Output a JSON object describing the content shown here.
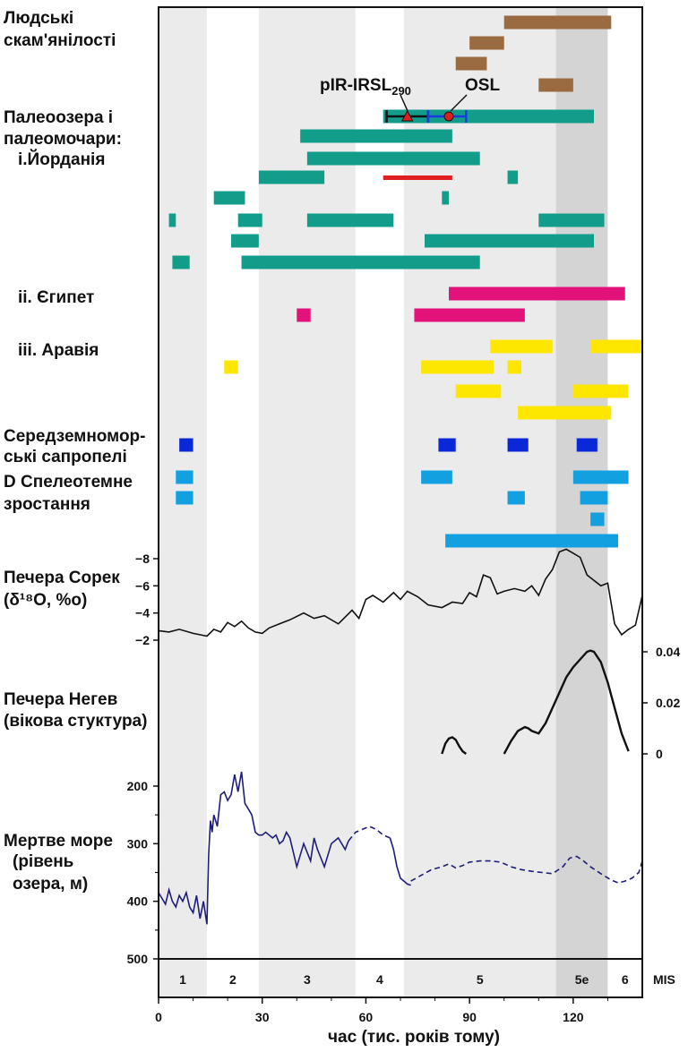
{
  "chart_data": {
    "type": "composite-timeline",
    "xlabel": "час (тис. років тому)",
    "xlim": [
      0,
      140
    ],
    "xticks": [
      0,
      30,
      60,
      90,
      120
    ],
    "mis": {
      "label": "MIS",
      "stages": [
        {
          "label": "1",
          "x0": 0,
          "x1": 14,
          "shade": "#ebebeb"
        },
        {
          "label": "2",
          "x0": 14,
          "x1": 29,
          "shade": "#ffffff"
        },
        {
          "label": "3",
          "x0": 29,
          "x1": 57,
          "shade": "#ebebeb"
        },
        {
          "label": "4",
          "x0": 57,
          "x1": 71,
          "shade": "#ffffff"
        },
        {
          "label": "5",
          "x0": 71,
          "x1": 115,
          "shade": "#ebebeb"
        },
        {
          "label": "5e",
          "x0": 115,
          "x1": 130,
          "shade": "#d4d4d4"
        },
        {
          "label": "6",
          "x0": 130,
          "x1": 140,
          "shade": "#ffffff"
        }
      ]
    },
    "sections": [
      {
        "label": "Людські скам'янілості"
      },
      {
        "label": "Палеоозера і палеомочари:"
      },
      {
        "label": "і.Йорданія"
      },
      {
        "label": "ii. Єгипет"
      },
      {
        "label": "iii. Аравія"
      },
      {
        "label": "Середземномор-ські сапропелі"
      },
      {
        "label": "D Спелеотемне зростання"
      },
      {
        "label": "Печера Сорек (δ¹⁸O, %o)"
      },
      {
        "label": "Печера Негев (вікова стуктура)"
      },
      {
        "label": "Мертве море (рівень озера, м)"
      }
    ],
    "bars": {
      "human_fossils": {
        "color": "#9a6a40",
        "ranges": [
          [
            100,
            131
          ],
          [
            90,
            100
          ],
          [
            86,
            95
          ],
          [
            110,
            120
          ]
        ]
      },
      "jordan": {
        "color": "#129d8b",
        "ranges": [
          [
            65,
            126
          ],
          [
            41,
            85
          ],
          [
            43,
            93
          ],
          [
            29,
            48
          ],
          [
            101,
            104
          ],
          [
            16,
            25
          ],
          [
            82,
            84
          ],
          [
            3,
            5
          ],
          [
            23,
            30
          ],
          [
            43,
            68
          ],
          [
            110,
            129
          ],
          [
            21,
            29
          ],
          [
            77,
            126
          ],
          [
            4,
            9
          ],
          [
            24,
            93
          ]
        ]
      },
      "jordan_red": {
        "color": "#e02020",
        "range": [
          65,
          85
        ]
      },
      "egypt": {
        "color": "#e2127a",
        "ranges": [
          [
            84,
            135
          ],
          [
            40,
            44
          ],
          [
            74,
            106
          ]
        ]
      },
      "arabia": {
        "color": "#fde600",
        "ranges": [
          [
            96,
            114
          ],
          [
            125,
            140
          ],
          [
            19,
            23
          ],
          [
            76,
            97
          ],
          [
            101,
            105
          ],
          [
            86,
            99
          ],
          [
            120,
            136
          ],
          [
            104,
            131
          ]
        ]
      },
      "sapropels": {
        "color": "#0a28d8",
        "ranges": [
          [
            6,
            10
          ],
          [
            81,
            86
          ],
          [
            101,
            107
          ],
          [
            121,
            127
          ]
        ]
      },
      "speleothems": {
        "color": "#12a0e0",
        "ranges": [
          [
            5,
            10
          ],
          [
            76,
            85
          ],
          [
            120,
            136
          ],
          [
            5,
            10
          ],
          [
            101,
            106
          ],
          [
            122,
            130
          ],
          [
            125,
            129
          ],
          [
            83,
            133
          ]
        ]
      }
    },
    "dating": {
      "labels": [
        "pIR-IRSL290",
        "OSL"
      ],
      "points": [
        {
          "name": "pIR-IRSL290",
          "x": 72,
          "xmin": 66,
          "xmax": 78
        },
        {
          "name": "OSL",
          "x": 84,
          "xmin": 78,
          "xmax": 89
        }
      ]
    },
    "soreq": {
      "ylabel": "δ18O, %o",
      "yticks": [
        -8,
        -6,
        -4,
        -2
      ],
      "x": [
        0,
        3,
        6,
        10,
        14,
        16,
        18,
        20,
        22,
        24,
        26,
        28,
        30,
        32,
        35,
        38,
        42,
        45,
        48,
        52,
        56,
        58,
        60,
        62,
        65,
        68,
        70,
        72,
        75,
        78,
        82,
        85,
        88,
        90,
        92,
        94,
        96,
        98,
        100,
        103,
        106,
        108,
        110,
        112,
        114,
        116,
        118,
        120,
        122,
        124,
        126,
        128,
        130,
        132,
        134,
        136,
        138,
        140
      ],
      "y": [
        -2.7,
        -2.6,
        -2.8,
        -2.5,
        -2.3,
        -2.8,
        -2.6,
        -3.3,
        -3.0,
        -3.4,
        -2.9,
        -2.6,
        -2.5,
        -2.9,
        -3.2,
        -3.5,
        -4.0,
        -3.6,
        -3.8,
        -3.2,
        -4.2,
        -3.6,
        -5.0,
        -5.3,
        -4.8,
        -5.5,
        -5.0,
        -5.6,
        -5.2,
        -4.6,
        -4.4,
        -4.8,
        -4.7,
        -5.5,
        -5.2,
        -6.8,
        -6.6,
        -5.4,
        -5.6,
        -5.8,
        -5.6,
        -6.0,
        -5.3,
        -6.5,
        -7.2,
        -8.5,
        -8.7,
        -8.4,
        -8.1,
        -6.8,
        -6.4,
        -6.0,
        -6.2,
        -3.2,
        -2.4,
        -2.8,
        -3.1,
        -5.3
      ]
    },
    "negev": {
      "yticks": [
        0,
        0.02,
        0.04
      ],
      "peaks": [
        {
          "x": [
            82,
            83,
            84,
            85,
            86,
            87,
            88,
            89
          ],
          "y": [
            0,
            0.004,
            0.006,
            0.0065,
            0.0055,
            0.003,
            0.001,
            0
          ]
        },
        {
          "x": [
            100,
            102,
            104,
            106,
            107,
            108,
            110,
            112,
            114,
            116,
            118,
            120,
            122,
            124,
            125,
            126,
            128,
            130,
            132,
            134,
            136
          ],
          "y": [
            0,
            0.005,
            0.009,
            0.0105,
            0.01,
            0.009,
            0.008,
            0.012,
            0.018,
            0.024,
            0.03,
            0.034,
            0.037,
            0.04,
            0.0405,
            0.04,
            0.036,
            0.028,
            0.018,
            0.008,
            0.001
          ]
        }
      ]
    },
    "dead_sea": {
      "ylabel": "рівень озера, м",
      "yticks": [
        200,
        300,
        400,
        500
      ],
      "solid_x": [
        0,
        1,
        2,
        3,
        4,
        5,
        6,
        7,
        8,
        9,
        10,
        11,
        12,
        13,
        14,
        14.5,
        15,
        15.5,
        16,
        17,
        18,
        19,
        20,
        21,
        22,
        23,
        24,
        25,
        26,
        27,
        28,
        29,
        30,
        31,
        32,
        33,
        34,
        35,
        36,
        37,
        38,
        40,
        42,
        44,
        45,
        46,
        48,
        50,
        52,
        54,
        55
      ],
      "solid_y": [
        385,
        395,
        405,
        380,
        400,
        410,
        390,
        400,
        385,
        410,
        420,
        390,
        430,
        400,
        440,
        320,
        260,
        280,
        250,
        270,
        215,
        210,
        225,
        215,
        180,
        210,
        175,
        230,
        240,
        250,
        280,
        285,
        285,
        280,
        285,
        290,
        285,
        300,
        295,
        280,
        290,
        340,
        300,
        330,
        290,
        310,
        340,
        300,
        290,
        310,
        295
      ],
      "dashed1_x": [
        55,
        57,
        59,
        61,
        63,
        65,
        67
      ],
      "dashed1_y": [
        295,
        280,
        275,
        270,
        275,
        285,
        290
      ],
      "solid2_x": [
        67,
        68,
        69,
        70,
        71,
        72,
        73
      ],
      "solid2_y": [
        290,
        310,
        340,
        360,
        365,
        370,
        372
      ],
      "dashed2_x": [
        73,
        76,
        79,
        82,
        84,
        86,
        88,
        90,
        93,
        96,
        99,
        102,
        105,
        108,
        111,
        114,
        117,
        119,
        121,
        123,
        125,
        128,
        131,
        133,
        135,
        137,
        139,
        140
      ],
      "dashed2_y": [
        365,
        355,
        345,
        340,
        335,
        342,
        338,
        332,
        330,
        330,
        332,
        340,
        345,
        348,
        350,
        352,
        340,
        325,
        322,
        330,
        340,
        352,
        363,
        368,
        365,
        360,
        350,
        330
      ]
    }
  }
}
